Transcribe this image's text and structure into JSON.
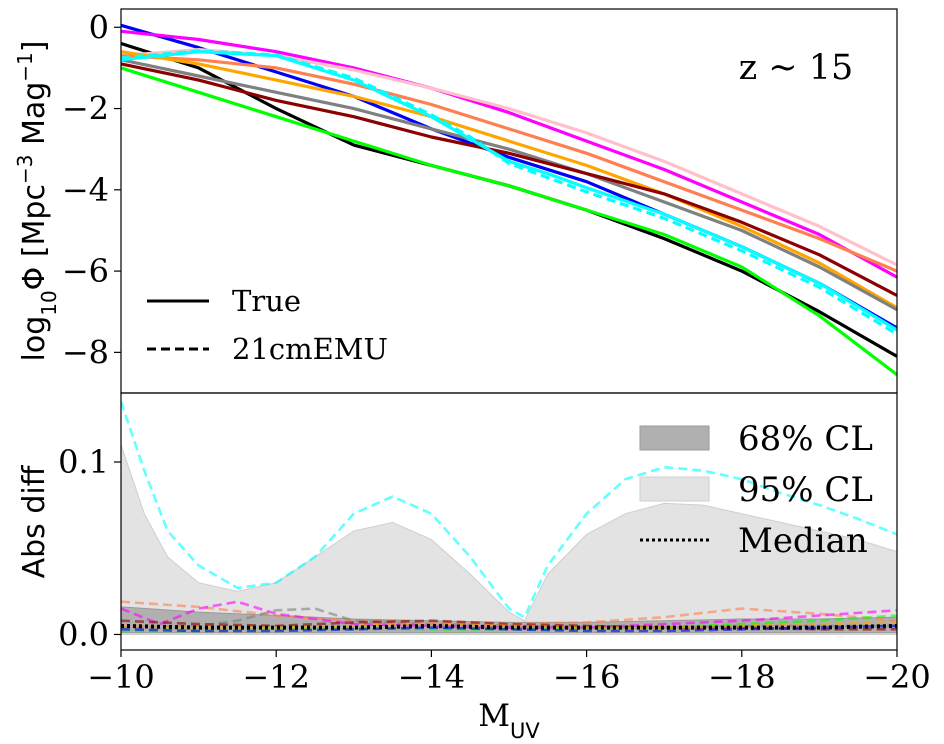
{
  "chart_data": [
    {
      "type": "line",
      "panel": "top",
      "annotation": "z ~ 15",
      "ylabel": "log10Φ [Mpc−3 Mag−1]",
      "xlim": [
        -10,
        -20
      ],
      "ylim": [
        -9.0,
        0.45
      ],
      "yticks": [
        0,
        -2,
        -4,
        -6,
        -8
      ],
      "ytick_labels": [
        "0",
        "−2",
        "−4",
        "−6",
        "−8"
      ],
      "legend": {
        "position": "lower-left",
        "entries": [
          {
            "label": "True",
            "style": "solid"
          },
          {
            "label": "21cmEMU",
            "style": "dashed"
          }
        ]
      },
      "series": [
        {
          "color": "#000000",
          "style": "solid",
          "x": [
            -10,
            -11,
            -12,
            -13,
            -14,
            -15,
            -16,
            -17,
            -18,
            -19,
            -20
          ],
          "y": [
            -0.4,
            -1.0,
            -2.0,
            -2.9,
            -3.4,
            -3.9,
            -4.5,
            -5.2,
            -6.0,
            -7.0,
            -8.1
          ]
        },
        {
          "color": "#0000ff",
          "style": "solid",
          "x": [
            -10,
            -11,
            -12,
            -13,
            -14,
            -15,
            -16,
            -17,
            -18,
            -19,
            -20
          ],
          "y": [
            0.05,
            -0.5,
            -1.1,
            -1.7,
            -2.5,
            -3.2,
            -3.8,
            -4.6,
            -5.4,
            -6.3,
            -7.4
          ]
        },
        {
          "color": "#00ff00",
          "style": "solid",
          "x": [
            -10,
            -11,
            -12,
            -13,
            -14,
            -15,
            -16,
            -17,
            -18,
            -19,
            -20
          ],
          "y": [
            -1.0,
            -1.6,
            -2.2,
            -2.8,
            -3.4,
            -3.9,
            -4.5,
            -5.1,
            -5.9,
            -7.1,
            -8.55
          ]
        },
        {
          "color": "#ff00ff",
          "style": "solid",
          "x": [
            -10,
            -11,
            -12,
            -13,
            -14,
            -15,
            -16,
            -17,
            -18,
            -19,
            -20
          ],
          "y": [
            -0.1,
            -0.3,
            -0.6,
            -1.0,
            -1.5,
            -2.1,
            -2.8,
            -3.5,
            -4.3,
            -5.1,
            -6.15
          ]
        },
        {
          "color": "#ffc0cb",
          "style": "solid",
          "x": [
            -10,
            -11,
            -12,
            -13,
            -14,
            -15,
            -16,
            -17,
            -18,
            -19,
            -20
          ],
          "y": [
            -0.7,
            -0.55,
            -0.7,
            -1.05,
            -1.5,
            -2.0,
            -2.6,
            -3.3,
            -4.1,
            -4.9,
            -5.85
          ]
        },
        {
          "color": "#ff7f50",
          "style": "solid",
          "x": [
            -10,
            -11,
            -12,
            -13,
            -14,
            -15,
            -16,
            -17,
            -18,
            -19,
            -20
          ],
          "y": [
            -0.7,
            -0.8,
            -1.0,
            -1.4,
            -1.9,
            -2.5,
            -3.1,
            -3.8,
            -4.5,
            -5.2,
            -6.0
          ]
        },
        {
          "color": "#ffa500",
          "style": "solid",
          "x": [
            -10,
            -11,
            -12,
            -13,
            -14,
            -15,
            -16,
            -17,
            -18,
            -19,
            -20
          ],
          "y": [
            -0.6,
            -0.9,
            -1.3,
            -1.7,
            -2.2,
            -2.8,
            -3.4,
            -4.1,
            -4.9,
            -5.8,
            -6.9
          ]
        },
        {
          "color": "#808080",
          "style": "solid",
          "x": [
            -10,
            -11,
            -12,
            -13,
            -14,
            -15,
            -16,
            -17,
            -18,
            -19,
            -20
          ],
          "y": [
            -0.8,
            -1.2,
            -1.6,
            -2.0,
            -2.5,
            -3.0,
            -3.6,
            -4.3,
            -5.0,
            -5.9,
            -6.95
          ]
        },
        {
          "color": "#8b0000",
          "style": "solid",
          "x": [
            -10,
            -11,
            -12,
            -13,
            -14,
            -15,
            -16,
            -17,
            -18,
            -19,
            -20
          ],
          "y": [
            -0.9,
            -1.3,
            -1.8,
            -2.2,
            -2.7,
            -3.1,
            -3.6,
            -4.1,
            -4.8,
            -5.6,
            -6.6
          ]
        },
        {
          "color": "#00ffff",
          "style": "solid",
          "x": [
            -10,
            -11,
            -12,
            -13,
            -14,
            -14.5,
            -15,
            -15.5,
            -16,
            -17,
            -18,
            -19,
            -20
          ],
          "y": [
            -0.8,
            -0.6,
            -0.7,
            -1.3,
            -2.2,
            -2.75,
            -3.3,
            -3.6,
            -3.95,
            -4.6,
            -5.4,
            -6.3,
            -7.45
          ]
        },
        {
          "color": "#00ffff",
          "style": "dashed",
          "x": [
            -10,
            -11,
            -12,
            -13,
            -14,
            -14.5,
            -15,
            -15.5,
            -16,
            -17,
            -18,
            -19,
            -20
          ],
          "y": [
            -0.75,
            -0.58,
            -0.68,
            -1.25,
            -2.15,
            -2.7,
            -3.35,
            -3.7,
            -4.05,
            -4.7,
            -5.5,
            -6.4,
            -7.55
          ]
        }
      ]
    },
    {
      "type": "area",
      "panel": "bottom",
      "xlabel": "MUV",
      "ylabel": "Abs diff",
      "xlim": [
        -10,
        -20
      ],
      "ylim": [
        -0.009,
        0.14
      ],
      "xticks": [
        -10,
        -12,
        -14,
        -16,
        -18,
        -20
      ],
      "xtick_labels": [
        "−10",
        "−12",
        "−14",
        "−16",
        "−18",
        "−20"
      ],
      "yticks": [
        0.0,
        0.1
      ],
      "ytick_labels": [
        "0.0",
        "0.1"
      ],
      "legend": {
        "position": "upper-right",
        "entries": [
          {
            "label": "68% CL",
            "style": "fill-dark"
          },
          {
            "label": "95% CL",
            "style": "fill-light"
          },
          {
            "label": "Median",
            "style": "dotted"
          }
        ]
      },
      "bands": [
        {
          "name": "95% CL",
          "color": "#e3e3e3",
          "x": [
            -10,
            -10.3,
            -10.6,
            -11,
            -11.5,
            -12,
            -12.5,
            -13,
            -13.5,
            -14,
            -14.5,
            -15,
            -15.2,
            -15.5,
            -16,
            -16.5,
            -17,
            -17.5,
            -18,
            -18.5,
            -19,
            -19.5,
            -20
          ],
          "upper": [
            0.11,
            0.07,
            0.045,
            0.03,
            0.025,
            0.03,
            0.045,
            0.06,
            0.065,
            0.055,
            0.035,
            0.013,
            0.008,
            0.035,
            0.058,
            0.07,
            0.076,
            0.075,
            0.07,
            0.065,
            0.06,
            0.055,
            0.048
          ],
          "lower": [
            0,
            0,
            0,
            0,
            0,
            0,
            0,
            0,
            0,
            0,
            0,
            0,
            0,
            0,
            0,
            0,
            0,
            0,
            0,
            0,
            0,
            0,
            0
          ]
        },
        {
          "name": "68% CL",
          "color": "#b0b0b0",
          "x": [
            -10,
            -11,
            -12,
            -13,
            -14,
            -15,
            -16,
            -17,
            -18,
            -19,
            -20
          ],
          "upper": [
            0.016,
            0.013,
            0.011,
            0.009,
            0.008,
            0.007,
            0.007,
            0.008,
            0.009,
            0.009,
            0.01
          ],
          "lower": [
            0.001,
            0.001,
            0.001,
            0.001,
            0.001,
            0.001,
            0.001,
            0.001,
            0.001,
            0.001,
            0.001
          ]
        }
      ],
      "series": [
        {
          "color": "#00ffff",
          "style": "dashed",
          "x": [
            -10,
            -10.3,
            -10.6,
            -11,
            -11.5,
            -12,
            -12.5,
            -13,
            -13.5,
            -14,
            -14.5,
            -15,
            -15.2,
            -15.5,
            -16,
            -16.5,
            -17,
            -17.5,
            -18,
            -18.5,
            -19,
            -19.5,
            -20
          ],
          "y": [
            0.135,
            0.095,
            0.06,
            0.04,
            0.027,
            0.03,
            0.045,
            0.07,
            0.08,
            0.07,
            0.045,
            0.015,
            0.01,
            0.04,
            0.07,
            0.09,
            0.097,
            0.095,
            0.09,
            0.082,
            0.075,
            0.067,
            0.058
          ]
        },
        {
          "color": "#ff7f50",
          "style": "dashed",
          "x": [
            -10,
            -11,
            -12,
            -13,
            -14,
            -15,
            -16,
            -17,
            -18,
            -19,
            -20
          ],
          "y": [
            0.019,
            0.016,
            0.011,
            0.008,
            0.007,
            0.006,
            0.007,
            0.01,
            0.015,
            0.012,
            0.008
          ]
        },
        {
          "color": "#ff00ff",
          "style": "dashed",
          "x": [
            -10,
            -10.5,
            -11,
            -11.5,
            -12,
            -13,
            -14,
            -15,
            -16,
            -17,
            -18,
            -19,
            -20
          ],
          "y": [
            0.015,
            0.006,
            0.015,
            0.019,
            0.012,
            0.006,
            0.005,
            0.004,
            0.004,
            0.006,
            0.008,
            0.011,
            0.014
          ]
        },
        {
          "color": "#808080",
          "style": "dashed",
          "x": [
            -10,
            -11,
            -11.5,
            -12,
            -12.5,
            -13,
            -14,
            -15,
            -16,
            -17,
            -18,
            -19,
            -20
          ],
          "y": [
            0.004,
            0.005,
            0.008,
            0.014,
            0.015,
            0.008,
            0.006,
            0.005,
            0.004,
            0.004,
            0.005,
            0.005,
            0.005
          ]
        },
        {
          "color": "#8b0000",
          "style": "dashed",
          "x": [
            -10,
            -11,
            -12,
            -13,
            -14,
            -15,
            -16,
            -17,
            -18,
            -19,
            -20
          ],
          "y": [
            0.008,
            0.006,
            0.005,
            0.007,
            0.008,
            0.006,
            0.005,
            0.004,
            0.004,
            0.003,
            0.003
          ]
        },
        {
          "color": "#00ff00",
          "style": "dashed",
          "x": [
            -10,
            -11,
            -12,
            -13,
            -14,
            -15,
            -16,
            -17,
            -18,
            -19,
            -20
          ],
          "y": [
            0.002,
            0.002,
            0.003,
            0.004,
            0.003,
            0.003,
            0.003,
            0.004,
            0.006,
            0.008,
            0.011
          ]
        },
        {
          "color": "#0000ff",
          "style": "dashed",
          "x": [
            -10,
            -11,
            -12,
            -13,
            -14,
            -15,
            -16,
            -17,
            -18,
            -19,
            -20
          ],
          "y": [
            0.003,
            0.002,
            0.002,
            0.003,
            0.004,
            0.003,
            0.002,
            0.002,
            0.003,
            0.004,
            0.005
          ]
        },
        {
          "color": "#ffa500",
          "style": "dashed",
          "x": [
            -10,
            -11,
            -12,
            -13,
            -14,
            -15,
            -16,
            -17,
            -18,
            -19,
            -20
          ],
          "y": [
            0.005,
            0.004,
            0.004,
            0.005,
            0.006,
            0.005,
            0.004,
            0.004,
            0.005,
            0.006,
            0.007
          ]
        },
        {
          "color": "#000000",
          "style": "dotted",
          "x": [
            -10,
            -11,
            -12,
            -13,
            -14,
            -15,
            -16,
            -17,
            -18,
            -19,
            -20
          ],
          "y": [
            0.005,
            0.004,
            0.004,
            0.004,
            0.005,
            0.004,
            0.004,
            0.004,
            0.004,
            0.004,
            0.005
          ]
        }
      ]
    }
  ]
}
